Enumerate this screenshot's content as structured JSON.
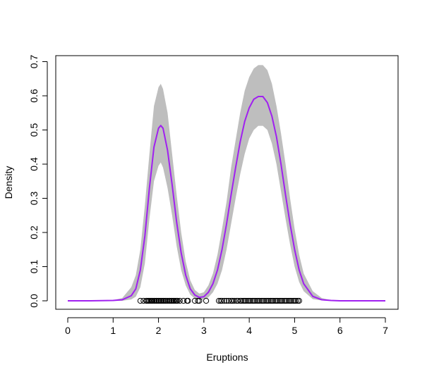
{
  "chart_data": {
    "type": "area",
    "xlabel": "Eruptions",
    "ylabel": "Density",
    "xlim": [
      0,
      7
    ],
    "ylim": [
      0,
      0.7
    ],
    "x_ticks": [
      "0",
      "1",
      "2",
      "3",
      "4",
      "5",
      "6",
      "7"
    ],
    "y_ticks": [
      "0.0",
      "0.1",
      "0.2",
      "0.3",
      "0.4",
      "0.5",
      "0.6",
      "0.7"
    ],
    "grid": false,
    "legend": "none",
    "colors": {
      "band": "#bebebe",
      "line": "#a020f0",
      "points": "#000000"
    },
    "series": [
      {
        "role": "density-estimate",
        "x": [
          0,
          0.5,
          1.0,
          1.2,
          1.4,
          1.5,
          1.6,
          1.7,
          1.8,
          1.9,
          2.0,
          2.05,
          2.1,
          2.2,
          2.3,
          2.4,
          2.5,
          2.6,
          2.7,
          2.8,
          2.9,
          3.0,
          3.1,
          3.2,
          3.3,
          3.4,
          3.5,
          3.6,
          3.7,
          3.8,
          3.9,
          4.0,
          4.1,
          4.2,
          4.3,
          4.4,
          4.5,
          4.6,
          4.7,
          4.8,
          4.9,
          5.0,
          5.1,
          5.2,
          5.4,
          5.6,
          5.8,
          6.0,
          6.5,
          7.0
        ],
        "y": [
          0,
          0,
          0.001,
          0.003,
          0.015,
          0.035,
          0.09,
          0.19,
          0.33,
          0.45,
          0.505,
          0.513,
          0.505,
          0.44,
          0.34,
          0.23,
          0.14,
          0.075,
          0.035,
          0.017,
          0.01,
          0.012,
          0.025,
          0.05,
          0.09,
          0.15,
          0.225,
          0.31,
          0.39,
          0.465,
          0.525,
          0.565,
          0.59,
          0.598,
          0.598,
          0.58,
          0.54,
          0.48,
          0.4,
          0.31,
          0.225,
          0.15,
          0.09,
          0.05,
          0.013,
          0.003,
          0.001,
          0,
          0,
          0
        ]
      },
      {
        "role": "band-upper",
        "x": [
          0,
          0.5,
          1.0,
          1.2,
          1.4,
          1.5,
          1.6,
          1.7,
          1.8,
          1.9,
          2.0,
          2.05,
          2.1,
          2.2,
          2.3,
          2.4,
          2.5,
          2.6,
          2.7,
          2.8,
          2.9,
          3.0,
          3.1,
          3.2,
          3.3,
          3.4,
          3.5,
          3.6,
          3.7,
          3.8,
          3.9,
          4.0,
          4.1,
          4.2,
          4.3,
          4.4,
          4.5,
          4.6,
          4.7,
          4.8,
          4.9,
          5.0,
          5.1,
          5.2,
          5.4,
          5.6,
          5.8,
          6.0,
          6.5,
          7.0
        ],
        "y": [
          0,
          0,
          0.002,
          0.008,
          0.04,
          0.075,
          0.15,
          0.28,
          0.43,
          0.57,
          0.625,
          0.635,
          0.62,
          0.55,
          0.43,
          0.31,
          0.2,
          0.115,
          0.06,
          0.032,
          0.021,
          0.025,
          0.045,
          0.08,
          0.135,
          0.21,
          0.29,
          0.39,
          0.47,
          0.55,
          0.615,
          0.655,
          0.68,
          0.69,
          0.69,
          0.675,
          0.635,
          0.57,
          0.49,
          0.4,
          0.3,
          0.21,
          0.135,
          0.08,
          0.028,
          0.008,
          0.002,
          0,
          0,
          0
        ]
      },
      {
        "role": "band-lower",
        "x": [
          0,
          0.5,
          1.0,
          1.2,
          1.4,
          1.5,
          1.6,
          1.7,
          1.8,
          1.9,
          2.0,
          2.05,
          2.1,
          2.2,
          2.3,
          2.4,
          2.5,
          2.6,
          2.7,
          2.8,
          2.9,
          3.0,
          3.1,
          3.2,
          3.3,
          3.4,
          3.5,
          3.6,
          3.7,
          3.8,
          3.9,
          4.0,
          4.1,
          4.2,
          4.3,
          4.4,
          4.5,
          4.6,
          4.7,
          4.8,
          4.9,
          5.0,
          5.1,
          5.2,
          5.4,
          5.6,
          5.8,
          6.0,
          6.5,
          7.0
        ],
        "y": [
          0,
          0,
          0,
          0,
          0.004,
          0.012,
          0.04,
          0.11,
          0.24,
          0.35,
          0.395,
          0.405,
          0.39,
          0.33,
          0.25,
          0.16,
          0.09,
          0.045,
          0.018,
          0.007,
          0.003,
          0.004,
          0.01,
          0.025,
          0.05,
          0.09,
          0.15,
          0.225,
          0.3,
          0.37,
          0.43,
          0.475,
          0.5,
          0.512,
          0.512,
          0.5,
          0.46,
          0.4,
          0.32,
          0.24,
          0.165,
          0.1,
          0.055,
          0.028,
          0.005,
          0.001,
          0,
          0,
          0,
          0
        ]
      }
    ],
    "points": [
      1.6,
      1.67,
      1.73,
      1.75,
      1.78,
      1.8,
      1.83,
      1.85,
      1.87,
      1.9,
      1.92,
      1.95,
      1.97,
      2.0,
      2.02,
      2.05,
      2.07,
      2.1,
      2.12,
      2.15,
      2.17,
      2.2,
      2.23,
      2.25,
      2.28,
      2.3,
      2.33,
      2.35,
      2.38,
      2.4,
      2.42,
      2.47,
      2.55,
      2.63,
      2.65,
      2.8,
      2.87,
      2.9,
      3.05,
      3.33,
      3.37,
      3.4,
      3.45,
      3.5,
      3.55,
      3.6,
      3.63,
      3.67,
      3.72,
      3.75,
      3.8,
      3.83,
      3.87,
      3.9,
      3.93,
      3.97,
      4.0,
      4.03,
      4.07,
      4.1,
      4.13,
      4.17,
      4.2,
      4.23,
      4.27,
      4.3,
      4.33,
      4.37,
      4.4,
      4.43,
      4.47,
      4.5,
      4.53,
      4.57,
      4.6,
      4.63,
      4.67,
      4.7,
      4.73,
      4.77,
      4.8,
      4.83,
      4.87,
      4.9,
      4.93,
      4.97,
      5.0,
      5.03,
      5.07,
      5.1
    ]
  }
}
